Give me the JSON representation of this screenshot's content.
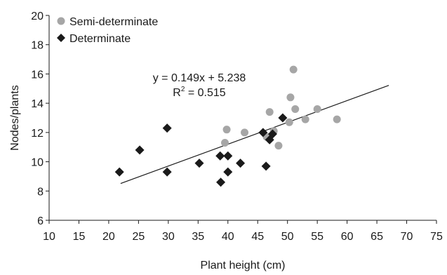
{
  "chart_data": {
    "type": "scatter",
    "xlabel": "Plant height (cm)",
    "ylabel": "Nodes/plants",
    "xlim": [
      10,
      75
    ],
    "ylim": [
      6,
      20
    ],
    "xticks": [
      10,
      15,
      20,
      25,
      30,
      35,
      40,
      45,
      50,
      55,
      60,
      65,
      70,
      75
    ],
    "yticks": [
      6,
      8,
      10,
      12,
      14,
      16,
      18,
      20
    ],
    "legend_position": "top-left",
    "grid": false,
    "series": [
      {
        "name": "Semi-determinate",
        "marker": "circle",
        "color": "#a6a6a6",
        "points": [
          {
            "x": 39.5,
            "y": 11.3
          },
          {
            "x": 39.8,
            "y": 12.2
          },
          {
            "x": 42.8,
            "y": 12.0
          },
          {
            "x": 46.5,
            "y": 11.7
          },
          {
            "x": 47.0,
            "y": 13.4
          },
          {
            "x": 47.7,
            "y": 12.1
          },
          {
            "x": 48.5,
            "y": 11.1
          },
          {
            "x": 50.3,
            "y": 12.7
          },
          {
            "x": 50.5,
            "y": 14.4
          },
          {
            "x": 51.0,
            "y": 16.3
          },
          {
            "x": 51.3,
            "y": 13.6
          },
          {
            "x": 53.0,
            "y": 12.9
          },
          {
            "x": 55.0,
            "y": 13.6
          },
          {
            "x": 58.3,
            "y": 12.9
          }
        ]
      },
      {
        "name": "Determinate",
        "marker": "diamond",
        "color": "#1a1a1a",
        "points": [
          {
            "x": 21.8,
            "y": 9.3
          },
          {
            "x": 25.2,
            "y": 10.8
          },
          {
            "x": 29.8,
            "y": 12.3
          },
          {
            "x": 29.8,
            "y": 9.3
          },
          {
            "x": 35.2,
            "y": 9.9
          },
          {
            "x": 38.7,
            "y": 10.4
          },
          {
            "x": 38.8,
            "y": 8.6
          },
          {
            "x": 40.0,
            "y": 10.4
          },
          {
            "x": 40.0,
            "y": 9.3
          },
          {
            "x": 42.1,
            "y": 9.9
          },
          {
            "x": 45.9,
            "y": 12.0
          },
          {
            "x": 46.4,
            "y": 9.7
          },
          {
            "x": 47.0,
            "y": 11.5
          },
          {
            "x": 47.5,
            "y": 11.9
          },
          {
            "x": 49.2,
            "y": 13.0
          }
        ]
      }
    ],
    "trendline": {
      "slope": 0.149,
      "intercept": 5.238,
      "x_range": [
        22,
        67
      ],
      "equation_label": "y = 0.149x + 5.238",
      "r2_label_main": "R",
      "r2_label_sup": "2",
      "r2_label_value": " = 0.515"
    }
  }
}
